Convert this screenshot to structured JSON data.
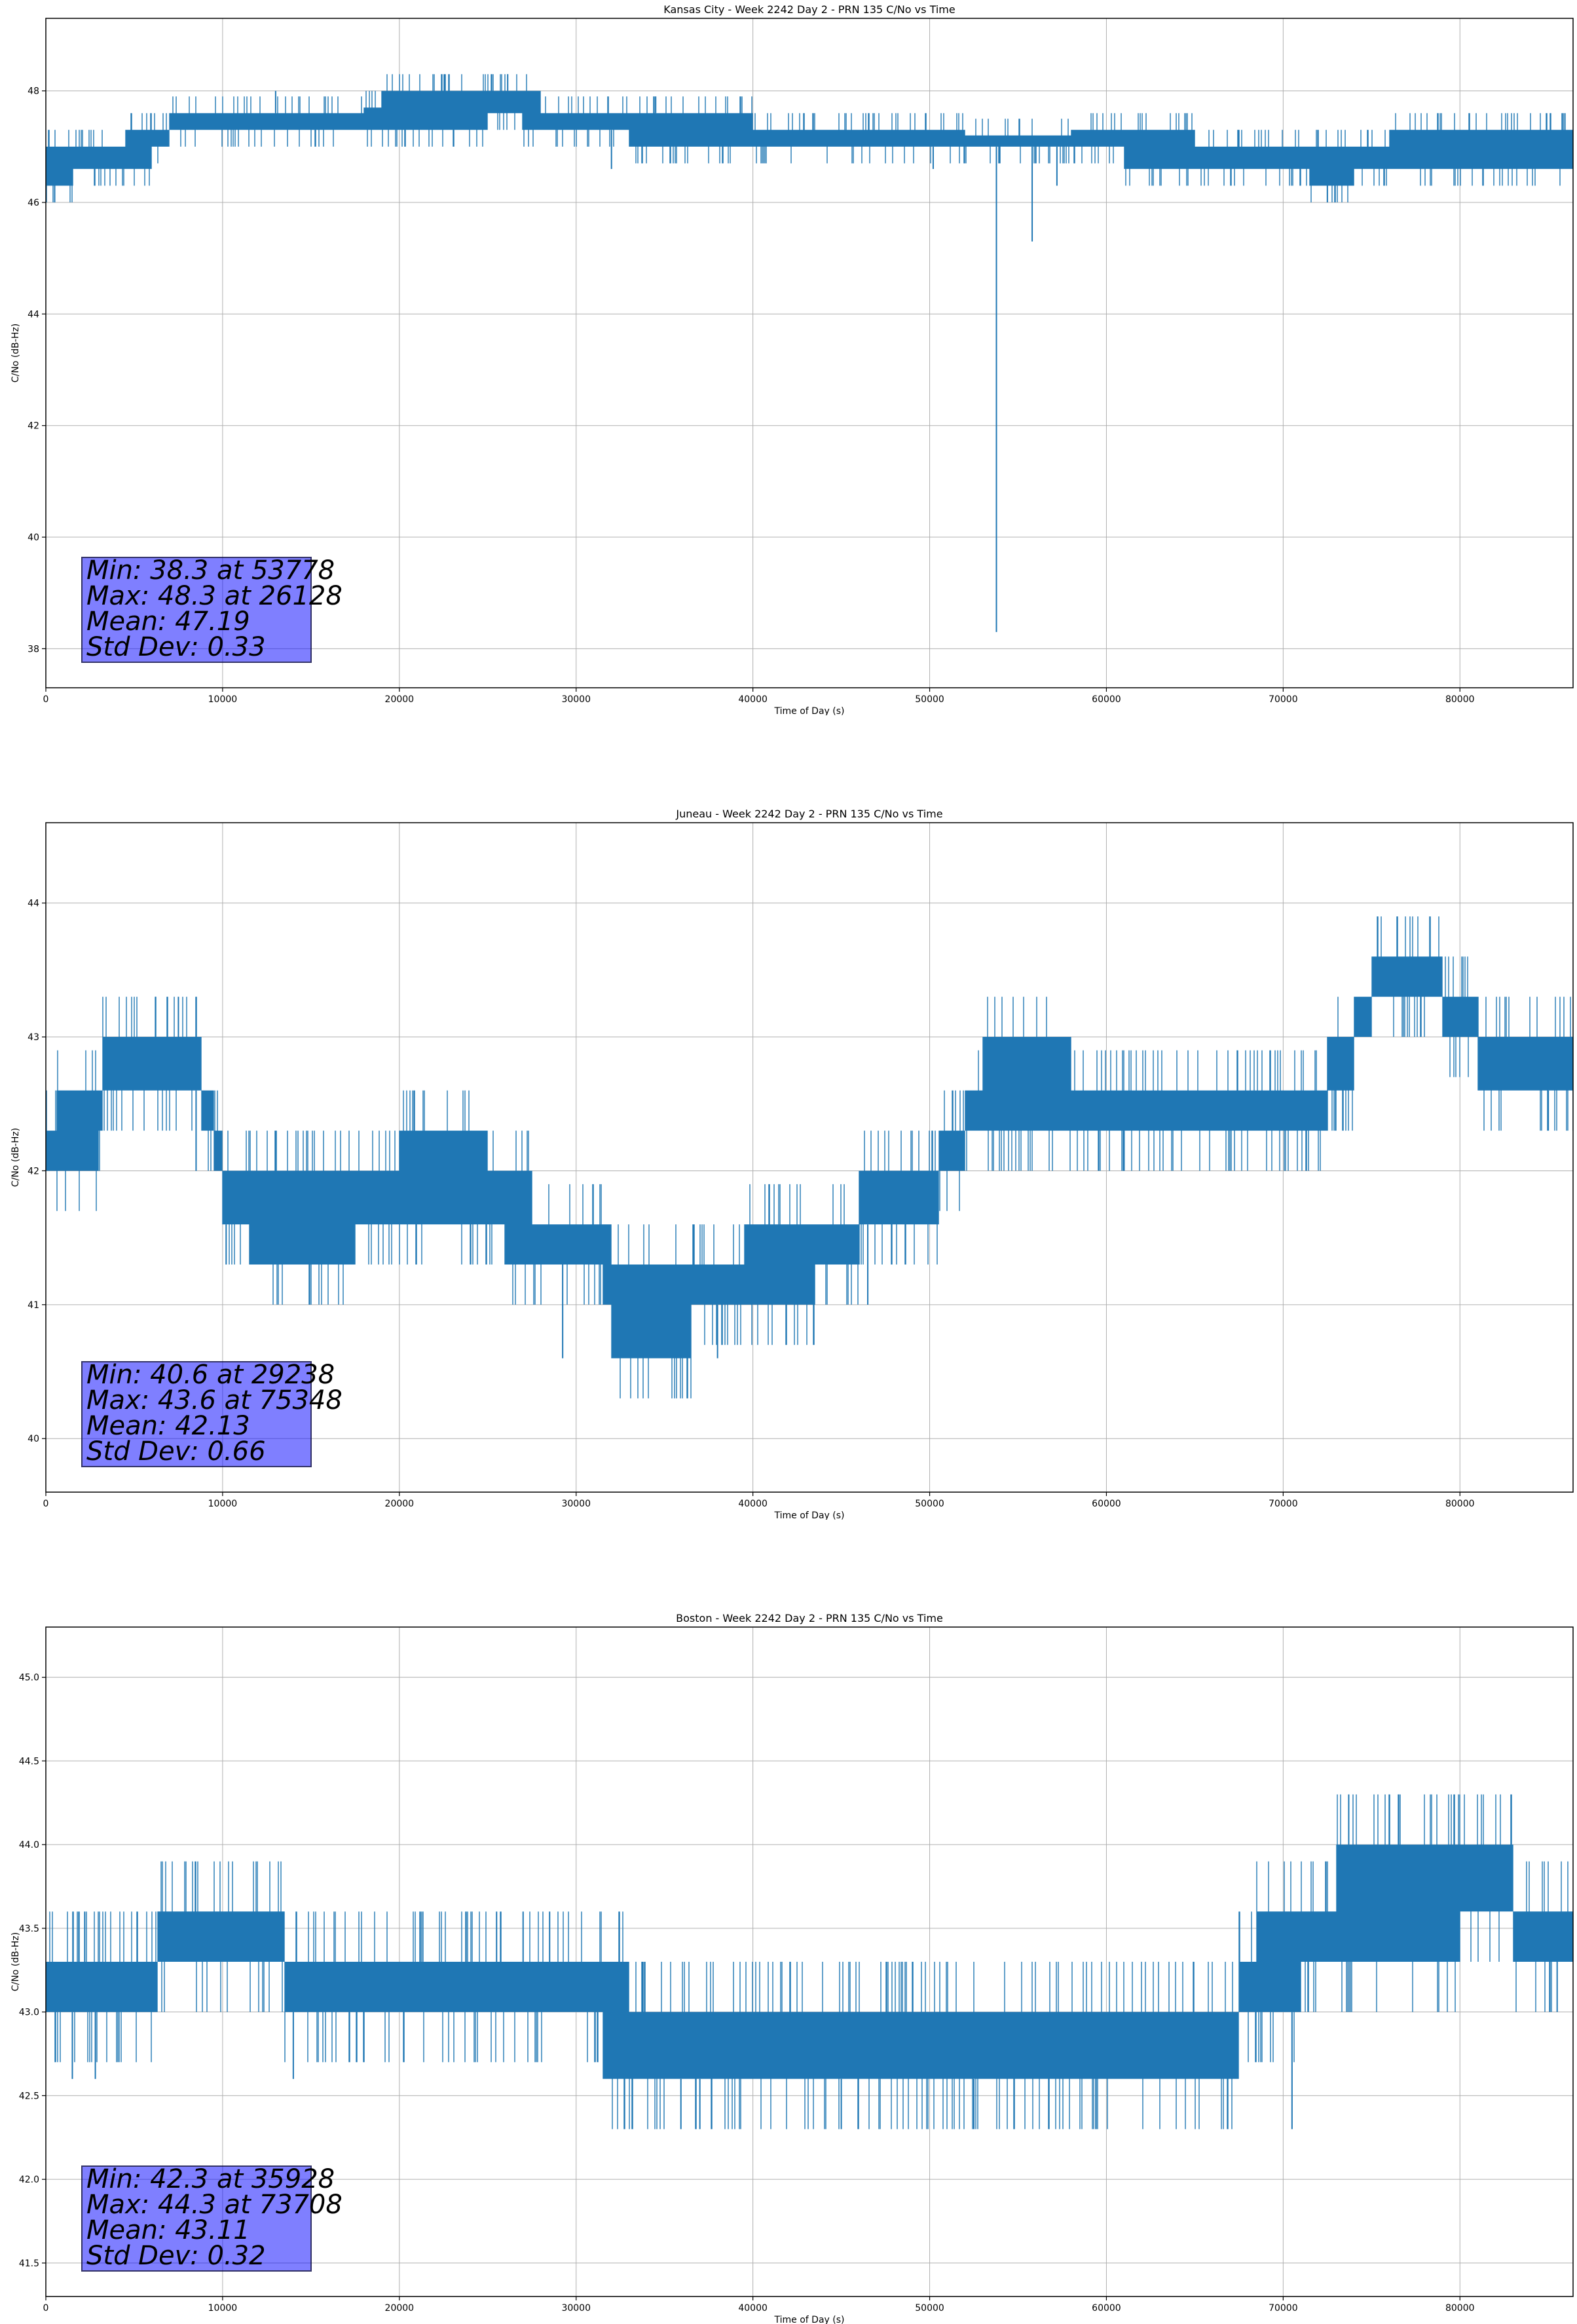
{
  "chart_data": [
    {
      "type": "line",
      "title": "Kansas City - Week 2242 Day 2 - PRN 135 C/No vs Time",
      "xlabel": "Time of Day (s)",
      "ylabel": "C/No (dB-Hz)",
      "xlim": [
        0,
        86400
      ],
      "ylim": [
        37.3,
        49.3
      ],
      "x_ticks": [
        0,
        10000,
        20000,
        30000,
        40000,
        50000,
        60000,
        70000,
        80000
      ],
      "y_ticks": [
        38,
        40,
        42,
        44,
        46,
        48
      ],
      "y_tick_decimals": 0,
      "grid": true,
      "color": "#1f77b4",
      "stats": {
        "min": "Min: 38.3 at 53778",
        "max": "Max: 48.3 at 26128",
        "mean": "Mean: 47.19",
        "std": "Std Dev: 0.33"
      },
      "series": [
        {
          "levels": [
            {
              "x": 0,
              "lo": 46.3,
              "hi": 47.0
            },
            {
              "x": 1500,
              "lo": 46.6,
              "hi": 47.0
            },
            {
              "x": 3000,
              "lo": 46.6,
              "hi": 47.0
            },
            {
              "x": 4500,
              "lo": 46.6,
              "hi": 47.3
            },
            {
              "x": 6000,
              "lo": 47.0,
              "hi": 47.3
            },
            {
              "x": 7000,
              "lo": 47.3,
              "hi": 47.6
            },
            {
              "x": 12000,
              "lo": 47.3,
              "hi": 47.6
            },
            {
              "x": 18000,
              "lo": 47.3,
              "hi": 47.7
            },
            {
              "x": 19000,
              "lo": 47.3,
              "hi": 48.0
            },
            {
              "x": 25000,
              "lo": 47.6,
              "hi": 48.0
            },
            {
              "x": 27000,
              "lo": 47.3,
              "hi": 48.0
            },
            {
              "x": 28000,
              "lo": 47.3,
              "hi": 47.6
            },
            {
              "x": 30000,
              "lo": 47.3,
              "hi": 47.6
            },
            {
              "x": 33000,
              "lo": 47.0,
              "hi": 47.6
            },
            {
              "x": 40000,
              "lo": 47.0,
              "hi": 47.3
            },
            {
              "x": 47000,
              "lo": 47.0,
              "hi": 47.3
            },
            {
              "x": 52000,
              "lo": 47.0,
              "hi": 47.2
            },
            {
              "x": 58000,
              "lo": 47.0,
              "hi": 47.3
            },
            {
              "x": 61000,
              "lo": 46.6,
              "hi": 47.3
            },
            {
              "x": 65000,
              "lo": 46.6,
              "hi": 47.0
            },
            {
              "x": 70000,
              "lo": 46.6,
              "hi": 47.0
            },
            {
              "x": 71500,
              "lo": 46.3,
              "hi": 47.0
            },
            {
              "x": 74000,
              "lo": 46.6,
              "hi": 47.0
            },
            {
              "x": 76000,
              "lo": 46.6,
              "hi": 47.3
            },
            {
              "x": 86400,
              "lo": 46.6,
              "hi": 47.3
            }
          ],
          "spikes_down": [
            {
              "x": 53778,
              "y": 38.3
            },
            {
              "x": 55800,
              "y": 45.3
            },
            {
              "x": 57200,
              "y": 46.3
            },
            {
              "x": 500,
              "y": 46.0
            },
            {
              "x": 32000,
              "y": 46.6
            },
            {
              "x": 72500,
              "y": 46.0
            },
            {
              "x": 50200,
              "y": 46.6
            }
          ],
          "spikes_up": [
            {
              "x": 26128,
              "y": 48.3
            },
            {
              "x": 13000,
              "y": 48.0
            },
            {
              "x": 34500,
              "y": 47.9
            }
          ]
        }
      ]
    },
    {
      "type": "line",
      "title": "Juneau - Week 2242 Day 2 - PRN 135 C/No vs Time",
      "xlabel": "Time of Day (s)",
      "ylabel": "C/No (dB-Hz)",
      "xlim": [
        0,
        86400
      ],
      "ylim": [
        39.6,
        44.6
      ],
      "x_ticks": [
        0,
        10000,
        20000,
        30000,
        40000,
        50000,
        60000,
        70000,
        80000
      ],
      "y_ticks": [
        40,
        41,
        42,
        43,
        44
      ],
      "y_tick_decimals": 0,
      "grid": true,
      "color": "#1f77b4",
      "stats": {
        "min": "Min: 40.6 at 29238",
        "max": "Max: 43.6 at 75348",
        "mean": "Mean: 42.13",
        "std": "Std Dev: 0.66"
      },
      "series": [
        {
          "levels": [
            {
              "x": 0,
              "lo": 42.0,
              "hi": 42.3
            },
            {
              "x": 600,
              "lo": 42.0,
              "hi": 42.6
            },
            {
              "x": 3000,
              "lo": 42.3,
              "hi": 42.6
            },
            {
              "x": 3200,
              "lo": 42.6,
              "hi": 43.0
            },
            {
              "x": 8800,
              "lo": 42.3,
              "hi": 42.6
            },
            {
              "x": 9500,
              "lo": 42.0,
              "hi": 42.3
            },
            {
              "x": 10000,
              "lo": 41.6,
              "hi": 42.0
            },
            {
              "x": 11500,
              "lo": 41.3,
              "hi": 42.0
            },
            {
              "x": 17500,
              "lo": 41.6,
              "hi": 42.0
            },
            {
              "x": 20000,
              "lo": 41.6,
              "hi": 42.3
            },
            {
              "x": 25000,
              "lo": 41.6,
              "hi": 42.0
            },
            {
              "x": 26000,
              "lo": 41.3,
              "hi": 42.0
            },
            {
              "x": 27500,
              "lo": 41.3,
              "hi": 41.6
            },
            {
              "x": 31500,
              "lo": 41.0,
              "hi": 41.6
            },
            {
              "x": 32000,
              "lo": 40.6,
              "hi": 41.3
            },
            {
              "x": 36500,
              "lo": 41.0,
              "hi": 41.3
            },
            {
              "x": 39500,
              "lo": 41.0,
              "hi": 41.6
            },
            {
              "x": 43500,
              "lo": 41.3,
              "hi": 41.6
            },
            {
              "x": 46000,
              "lo": 41.6,
              "hi": 42.0
            },
            {
              "x": 50500,
              "lo": 42.0,
              "hi": 42.3
            },
            {
              "x": 52000,
              "lo": 42.3,
              "hi": 42.6
            },
            {
              "x": 53000,
              "lo": 42.3,
              "hi": 43.0
            },
            {
              "x": 58000,
              "lo": 42.3,
              "hi": 42.6
            },
            {
              "x": 68500,
              "lo": 42.3,
              "hi": 42.6
            },
            {
              "x": 72500,
              "lo": 42.6,
              "hi": 43.0
            },
            {
              "x": 74000,
              "lo": 43.0,
              "hi": 43.3
            },
            {
              "x": 75000,
              "lo": 43.3,
              "hi": 43.6
            },
            {
              "x": 79000,
              "lo": 43.0,
              "hi": 43.3
            },
            {
              "x": 81000,
              "lo": 42.6,
              "hi": 43.0
            },
            {
              "x": 86400,
              "lo": 42.6,
              "hi": 43.0
            }
          ],
          "spikes_down": [
            {
              "x": 29238,
              "y": 40.6
            },
            {
              "x": 8500,
              "y": 42.0
            },
            {
              "x": 10200,
              "y": 41.3
            },
            {
              "x": 38000,
              "y": 40.6
            },
            {
              "x": 46500,
              "y": 41.0
            },
            {
              "x": 61000,
              "y": 42.0
            },
            {
              "x": 85000,
              "y": 42.3
            }
          ],
          "spikes_up": [
            {
              "x": 75348,
              "y": 43.6
            },
            {
              "x": 6200,
              "y": 43.3
            },
            {
              "x": 7500,
              "y": 43.3
            },
            {
              "x": 80500,
              "y": 43.3
            }
          ]
        }
      ]
    },
    {
      "type": "line",
      "title": "Boston - Week 2242 Day 2 - PRN 135 C/No vs Time",
      "xlabel": "Time of Day (s)",
      "ylabel": "C/No (dB-Hz)",
      "xlim": [
        0,
        86400
      ],
      "ylim": [
        41.3,
        45.3
      ],
      "x_ticks": [
        0,
        10000,
        20000,
        30000,
        40000,
        50000,
        60000,
        70000,
        80000
      ],
      "y_ticks": [
        41.5,
        42.0,
        42.5,
        43.0,
        43.5,
        44.0,
        44.5,
        45.0
      ],
      "y_tick_decimals": 1,
      "grid": true,
      "color": "#1f77b4",
      "stats": {
        "min": "Min: 42.3 at 35928",
        "max": "Max: 44.3 at 73708",
        "mean": "Mean: 43.11",
        "std": "Std Dev: 0.32"
      },
      "series": [
        {
          "levels": [
            {
              "x": 0,
              "lo": 43.0,
              "hi": 43.3
            },
            {
              "x": 6000,
              "lo": 43.0,
              "hi": 43.3
            },
            {
              "x": 6300,
              "lo": 43.3,
              "hi": 43.6
            },
            {
              "x": 13500,
              "lo": 43.0,
              "hi": 43.3
            },
            {
              "x": 31500,
              "lo": 42.6,
              "hi": 43.3
            },
            {
              "x": 33000,
              "lo": 42.6,
              "hi": 43.0
            },
            {
              "x": 66000,
              "lo": 42.6,
              "hi": 43.0
            },
            {
              "x": 67500,
              "lo": 43.0,
              "hi": 43.3
            },
            {
              "x": 68500,
              "lo": 43.0,
              "hi": 43.6
            },
            {
              "x": 71000,
              "lo": 43.3,
              "hi": 43.6
            },
            {
              "x": 73000,
              "lo": 43.3,
              "hi": 44.0
            },
            {
              "x": 80000,
              "lo": 43.6,
              "hi": 44.0
            },
            {
              "x": 83000,
              "lo": 43.3,
              "hi": 43.6
            },
            {
              "x": 86400,
              "lo": 43.3,
              "hi": 43.6
            }
          ],
          "spikes_down": [
            {
              "x": 35928,
              "y": 42.3
            },
            {
              "x": 1500,
              "y": 42.6
            },
            {
              "x": 2800,
              "y": 42.6
            },
            {
              "x": 14000,
              "y": 42.6
            },
            {
              "x": 37000,
              "y": 42.3
            },
            {
              "x": 45000,
              "y": 42.3
            },
            {
              "x": 52500,
              "y": 42.3
            },
            {
              "x": 70500,
              "y": 42.3
            },
            {
              "x": 85500,
              "y": 43.0
            }
          ],
          "spikes_up": [
            {
              "x": 73708,
              "y": 44.3
            },
            {
              "x": 2200,
              "y": 43.6
            },
            {
              "x": 25500,
              "y": 43.6
            },
            {
              "x": 27000,
              "y": 43.6
            },
            {
              "x": 28500,
              "y": 43.6
            }
          ]
        }
      ]
    }
  ]
}
